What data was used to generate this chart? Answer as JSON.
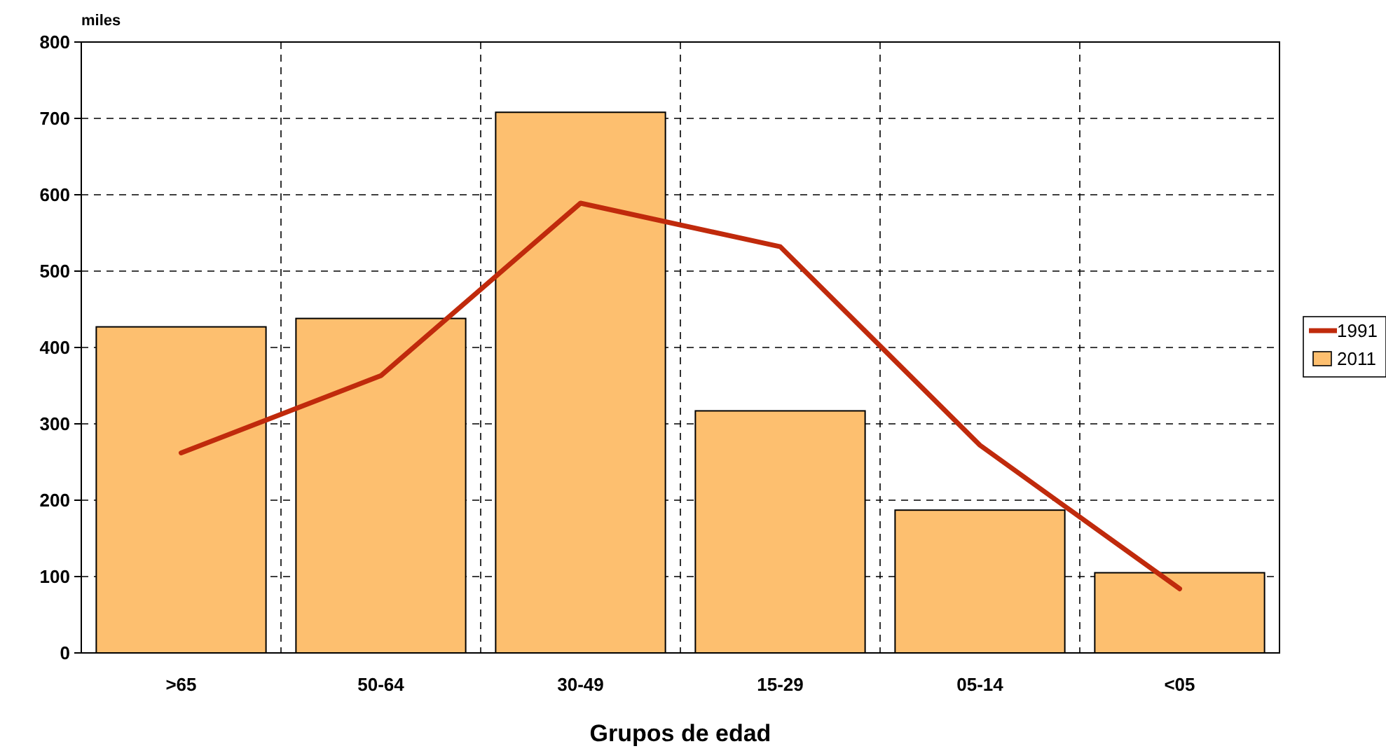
{
  "chart_data": {
    "type": "bar",
    "ylabel": "miles",
    "xlabel": "Grupos de edad",
    "categories": [
      ">65",
      "50-64",
      "30-49",
      "15-29",
      "05-14",
      "<05"
    ],
    "series": [
      {
        "name": "1991",
        "type": "line",
        "color": "#c02a0c",
        "values": [
          262,
          363,
          589,
          532,
          272,
          84
        ]
      },
      {
        "name": "2011",
        "color": "#fdbf6f",
        "values": [
          427,
          438,
          708,
          317,
          187,
          105
        ]
      }
    ],
    "ylim": [
      0,
      800
    ],
    "yticks": [
      0,
      100,
      200,
      300,
      400,
      500,
      600,
      700,
      800
    ],
    "grid": true,
    "legend": "right"
  }
}
